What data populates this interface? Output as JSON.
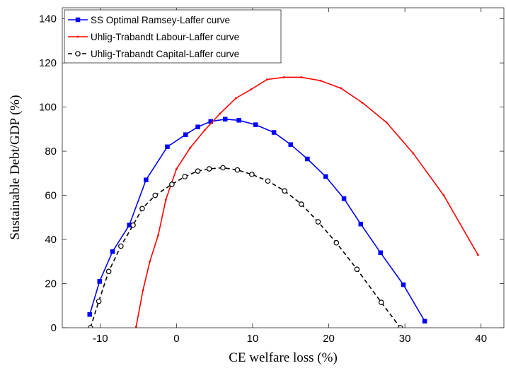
{
  "chart_data": {
    "type": "line",
    "xlabel": "CE welfare loss (%)",
    "ylabel": "Sustainable Debt/GDP (%)",
    "xlim": [
      -15,
      43
    ],
    "ylim": [
      0,
      145
    ],
    "xticks": [
      -10,
      0,
      10,
      20,
      30,
      40
    ],
    "yticks": [
      0,
      20,
      40,
      60,
      80,
      100,
      120,
      140
    ],
    "xtick_labels": [
      "-10",
      "0",
      "10",
      "20",
      "30",
      "40"
    ],
    "ytick_labels": [
      "0",
      "20",
      "40",
      "60",
      "80",
      "100",
      "120",
      "140"
    ],
    "grid": false,
    "legend_position": "top-left",
    "series": [
      {
        "name": "SS Optimal Ramsey-Laffer curve",
        "color": "#0000ff",
        "line": "solid",
        "marker": "square",
        "x": [
          -11.4,
          -10.1,
          -8.4,
          -6.2,
          -4,
          -1.2,
          1.2,
          2.8,
          4.5,
          6.4,
          8.2,
          10.4,
          12.8,
          15,
          17.2,
          19.6,
          22,
          24.2,
          26.8,
          29.8,
          32.6
        ],
        "y": [
          6,
          21,
          34.5,
          46.5,
          67,
          82,
          87.5,
          91,
          93.5,
          94.5,
          94,
          92,
          88.5,
          83,
          76.5,
          68.5,
          58.5,
          47,
          34,
          19.5,
          3
        ]
      },
      {
        "name": "Uhlig-Trabandt Labour-Laffer curve",
        "color": "#ff0000",
        "line": "solid",
        "marker": "point",
        "x": [
          -5.3,
          -4.4,
          -3.5,
          -2.4,
          -1.4,
          0,
          1.8,
          3.7,
          5.7,
          7.8,
          9.8,
          11.9,
          14.1,
          16.4,
          18.9,
          21.6,
          24.4,
          27.6,
          31.1,
          35.1,
          39.6
        ],
        "y": [
          0.5,
          17,
          30,
          42,
          58,
          72,
          81.5,
          89.5,
          97,
          104,
          108,
          112.5,
          113.5,
          113.5,
          112,
          108.5,
          102,
          93,
          79,
          60,
          33
        ]
      },
      {
        "name": "Uhlig-Trabandt Capital-Laffer curve",
        "color": "#000000",
        "line": "dashed",
        "marker": "circle",
        "x": [
          -11.3,
          -10.2,
          -8.9,
          -7.3,
          -5.7,
          -4.5,
          -2.8,
          -0.6,
          1.1,
          2.8,
          4.3,
          6.1,
          8,
          9.9,
          12,
          14.2,
          16.4,
          18.6,
          21,
          23.7,
          26.9,
          29.4
        ],
        "y": [
          0,
          12,
          25.5,
          37,
          46.5,
          54,
          60,
          65,
          68.5,
          71,
          72,
          72.5,
          71.5,
          69.5,
          66.5,
          62,
          56,
          48,
          38.5,
          26.5,
          11.5,
          0
        ]
      }
    ]
  }
}
